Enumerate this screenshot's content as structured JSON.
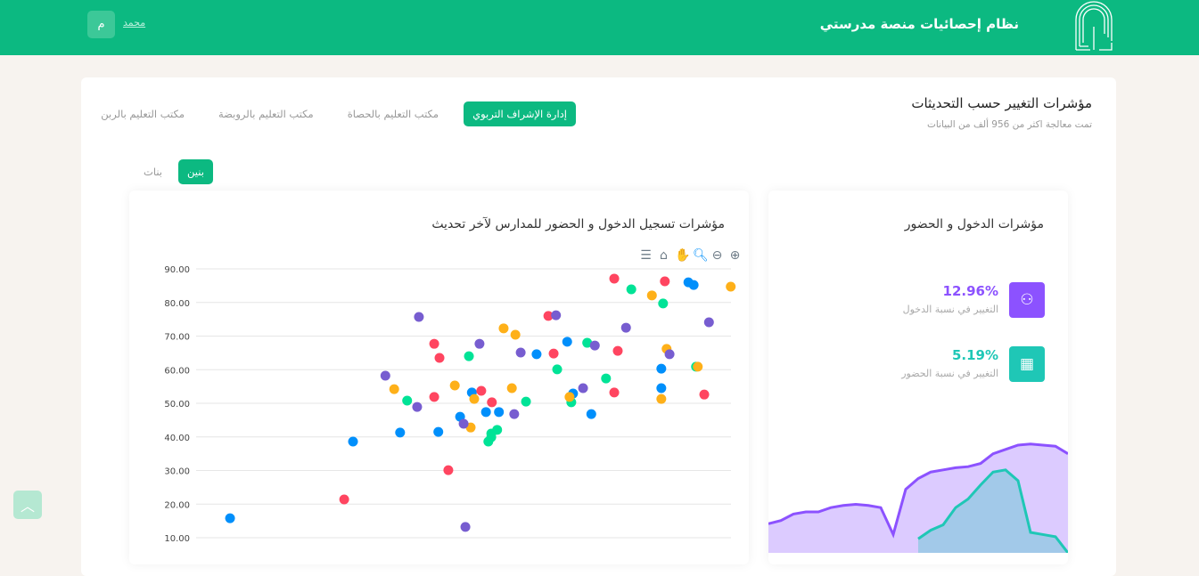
{
  "header": {
    "app_title": "نظام إحصائيات منصة مدرستي",
    "user_name": "محمد",
    "avatar_initial": "م",
    "logo_icon": "madrasati-logo",
    "color": "#0cb981"
  },
  "main": {
    "title": "مؤشرات التغيير حسب التحديثات",
    "subtitle": "تمت معالجة اكثر من 956 ألف من البيانات",
    "tabs": [
      {
        "label": "إدارة الإشراف التربوي",
        "active": true
      },
      {
        "label": "مكتب التعليم بالحصاة"
      },
      {
        "label": "مكتب التعليم بالروبضة"
      },
      {
        "label": "مكتب التعليم بالربن"
      }
    ],
    "gender_tabs": [
      {
        "label": "بنين",
        "active": true
      },
      {
        "label": "بنات"
      }
    ]
  },
  "stats": {
    "title": "مؤشرات الدخول و الحضور",
    "items": [
      {
        "value": "12.96%",
        "label": "التغيير في نسبة الدخول",
        "icon": "users-network-icon",
        "color": "#8c52ff"
      },
      {
        "value": "5.19%",
        "label": "التغيير في نسبة الحضور",
        "icon": "classroom-icon",
        "color": "#1fc7b6"
      }
    ]
  },
  "toolbar_icons": [
    "zoom-in-icon",
    "zoom-out-icon",
    "zoom-select-icon",
    "pan-icon",
    "reset-home-icon",
    "menu-icon"
  ],
  "chart_data": [
    {
      "type": "scatter",
      "title": "مؤشرات تسجيل الدخول و الحضور للمدارس لآخر تحديث",
      "yticks": [
        "90.00",
        "80.00",
        "70.00",
        "60.00",
        "50.00",
        "40.00",
        "30.00",
        "20.00",
        "10.00"
      ],
      "ylim": [
        10,
        90
      ],
      "xlim": [
        0,
        100
      ],
      "grid": true,
      "series": [
        {
          "color": "#008ffb",
          "points": [
            [
              14.1,
              15.8
            ],
            [
              35,
              38.6
            ],
            [
              43,
              41.3
            ],
            [
              49.5,
              41.5
            ],
            [
              53.2,
              46
            ],
            [
              55.2,
              53.2
            ],
            [
              57.6,
              47.4
            ],
            [
              59.8,
              47.4
            ],
            [
              66.2,
              64.6
            ],
            [
              71.4,
              68.3
            ],
            [
              72.4,
              52.9
            ],
            [
              75.5,
              46.8
            ],
            [
              87.4,
              60.3
            ],
            [
              87.4,
              54.5
            ],
            [
              92,
              86
            ],
            [
              92.9,
              85.2
            ]
          ]
        },
        {
          "color": "#ff4560",
          "points": [
            [
              33.5,
              21.4
            ],
            [
              48.8,
              67.7
            ],
            [
              49.7,
              63.5
            ],
            [
              48.8,
              51.9
            ],
            [
              51.2,
              30.1
            ],
            [
              56.8,
              53.7
            ],
            [
              58.6,
              50.3
            ],
            [
              68.2,
              76
            ],
            [
              69.1,
              64.8
            ],
            [
              79.4,
              87.1
            ],
            [
              80,
              65.6
            ],
            [
              79.4,
              53.2
            ],
            [
              88,
              86.3
            ],
            [
              94.7,
              52.6
            ]
          ]
        },
        {
          "color": "#00e396",
          "points": [
            [
              44.2,
              50.8
            ],
            [
              54.7,
              64
            ],
            [
              58,
              38.6
            ],
            [
              58.5,
              41
            ],
            [
              59.5,
              42.1
            ],
            [
              58.5,
              39.9
            ],
            [
              64.4,
              50.5
            ],
            [
              69.7,
              60.1
            ],
            [
              72.1,
              50.3
            ],
            [
              74.8,
              68
            ],
            [
              78,
              57.4
            ],
            [
              82.3,
              83.9
            ],
            [
              87.7,
              79.7
            ],
            [
              93.3,
              60.9
            ]
          ]
        },
        {
          "color": "#feb019",
          "points": [
            [
              42,
              54.2
            ],
            [
              52.3,
              55.3
            ],
            [
              55.6,
              51.3
            ],
            [
              55,
              42.8
            ],
            [
              60.6,
              72.3
            ],
            [
              62.6,
              70.4
            ],
            [
              62,
              54.5
            ],
            [
              71.8,
              51.9
            ],
            [
              85.8,
              82.1
            ],
            [
              87.4,
              51.3
            ],
            [
              88.3,
              66.2
            ],
            [
              93.6,
              60.9
            ],
            [
              99.2,
              84.7
            ]
          ]
        },
        {
          "color": "#775dd0",
          "points": [
            [
              46.2,
              75.7
            ],
            [
              40.5,
              58.2
            ],
            [
              45.9,
              48.9
            ],
            [
              53.8,
              43.9
            ],
            [
              56.5,
              67.7
            ],
            [
              63.5,
              65.1
            ],
            [
              62.4,
              46.8
            ],
            [
              69.5,
              76.2
            ],
            [
              74.1,
              54.5
            ],
            [
              76.1,
              67.2
            ],
            [
              81.4,
              72.5
            ],
            [
              88.8,
              64.6
            ],
            [
              95.5,
              74.1
            ],
            [
              54.1,
              13.2
            ]
          ]
        }
      ]
    },
    {
      "type": "area",
      "series": [
        {
          "color": "#8c52ff",
          "values": [
            27,
            30,
            36,
            38,
            38,
            42,
            44,
            45,
            44,
            42,
            17,
            59,
            69,
            75,
            77,
            79,
            80,
            83,
            92,
            96,
            100,
            101,
            100,
            99,
            92
          ]
        },
        {
          "color": "#1fc7b6",
          "values": [
            null,
            null,
            null,
            null,
            null,
            null,
            null,
            null,
            null,
            null,
            null,
            null,
            13,
            21,
            26,
            42,
            50,
            63,
            75,
            77,
            67,
            19,
            17,
            15,
            0
          ]
        }
      ]
    }
  ]
}
